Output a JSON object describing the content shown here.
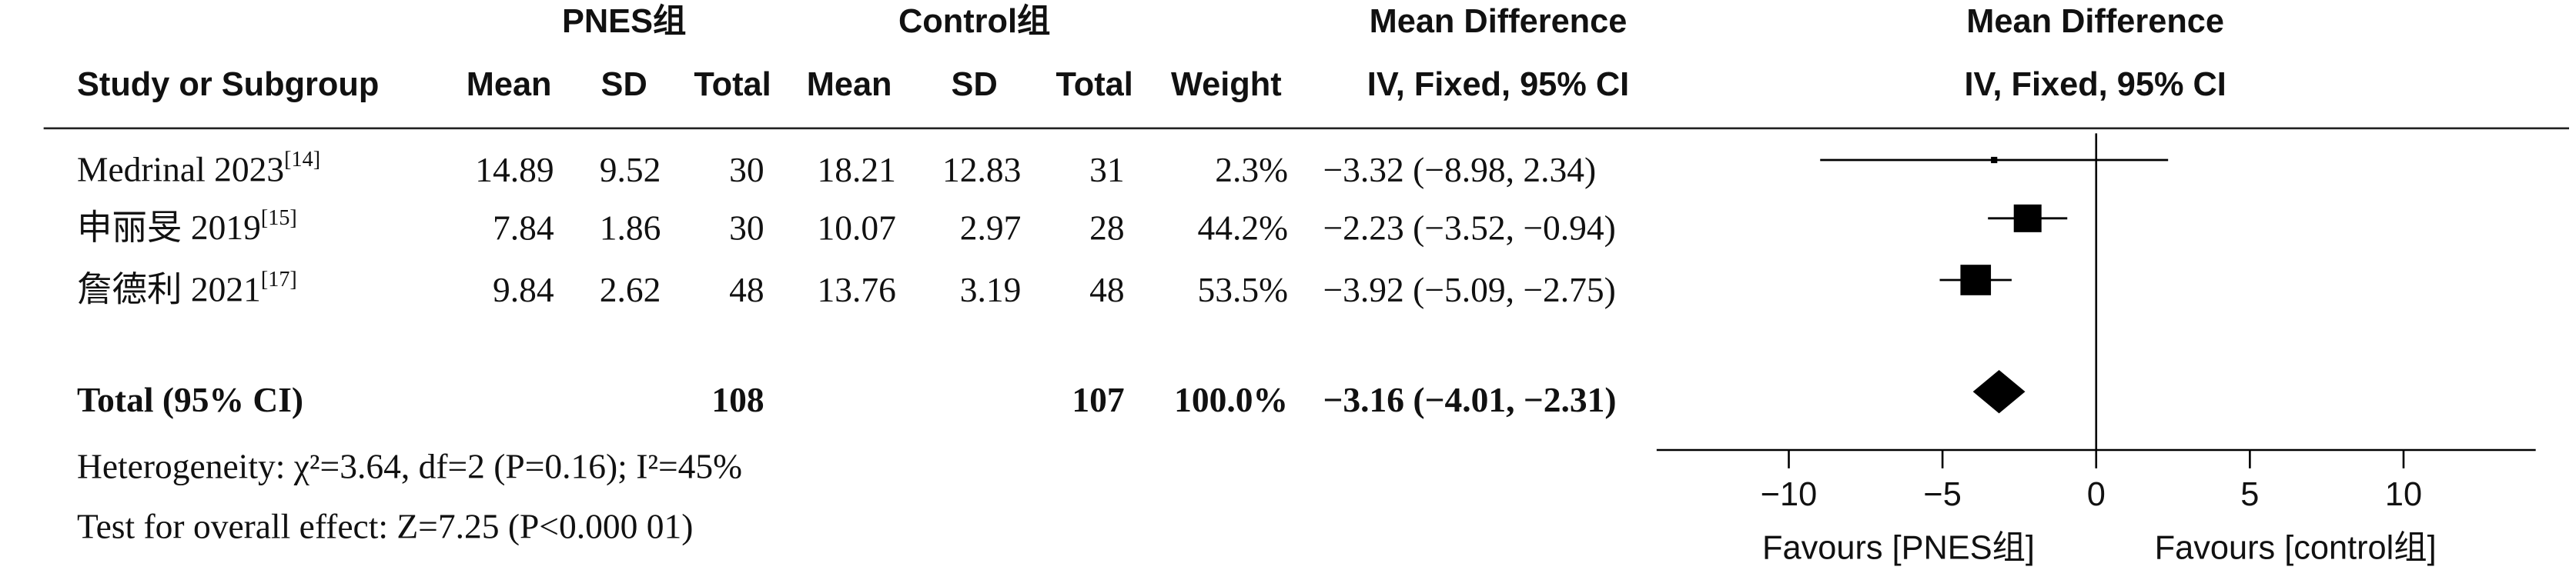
{
  "chart_data": {
    "type": "forest",
    "headers": {
      "group1": "PNES组",
      "group2": "Control组",
      "md_table": "Mean Difference",
      "md_plot": "Mean Difference",
      "study": "Study or Subgroup",
      "mean1": "Mean",
      "sd1": "SD",
      "total1": "Total",
      "mean2": "Mean",
      "sd2": "SD",
      "total2": "Total",
      "weight": "Weight",
      "method_table": "IV, Fixed, 95% CI",
      "method_plot": "IV, Fixed, 95% CI"
    },
    "studies": [
      {
        "name": "Medrinal 2023",
        "ref": "[14]",
        "mean1": 14.89,
        "sd1": 9.52,
        "total1": 30,
        "mean2": 18.21,
        "sd2": 12.83,
        "total2": 31,
        "weight": 2.3,
        "weight_label": "2.3%",
        "md": -3.32,
        "ci_low": -8.98,
        "ci_high": 2.34,
        "md_label": "−3.32 (−8.98, 2.34)"
      },
      {
        "name": "申丽旻 2019",
        "ref": "[15]",
        "mean1": 7.84,
        "sd1": 1.86,
        "total1": 30,
        "mean2": 10.07,
        "sd2": 2.97,
        "total2": 28,
        "weight": 44.2,
        "weight_label": "44.2%",
        "md": -2.23,
        "ci_low": -3.52,
        "ci_high": -0.94,
        "md_label": "−2.23 (−3.52, −0.94)"
      },
      {
        "name": "詹德利 2021",
        "ref": "[17]",
        "mean1": 9.84,
        "sd1": 2.62,
        "total1": 48,
        "mean2": 13.76,
        "sd2": 3.19,
        "total2": 48,
        "weight": 53.5,
        "weight_label": "53.5%",
        "md": -3.92,
        "ci_low": -5.09,
        "ci_high": -2.75,
        "md_label": "−3.92 (−5.09, −2.75)"
      }
    ],
    "total": {
      "name": "Total (95% CI)",
      "total1": 108,
      "total2": 107,
      "weight": 100.0,
      "weight_label": "100.0%",
      "md": -3.16,
      "ci_low": -4.01,
      "ci_high": -2.31,
      "md_label": "−3.16 (−4.01, −2.31)"
    },
    "heterogeneity": "Heterogeneity: χ²=3.64, df=2 (P=0.16); I²=45%",
    "overall_effect": "Test for overall effect: Z=7.25 (P<0.000 01)",
    "xlim": [
      -14.3,
      14.3
    ],
    "xticks": [
      {
        "value": -10,
        "label": "−10"
      },
      {
        "value": -5,
        "label": "−5"
      },
      0,
      5,
      10
    ],
    "favours_left": "Favours [PNES组]",
    "favours_right": "Favours [control组]"
  }
}
